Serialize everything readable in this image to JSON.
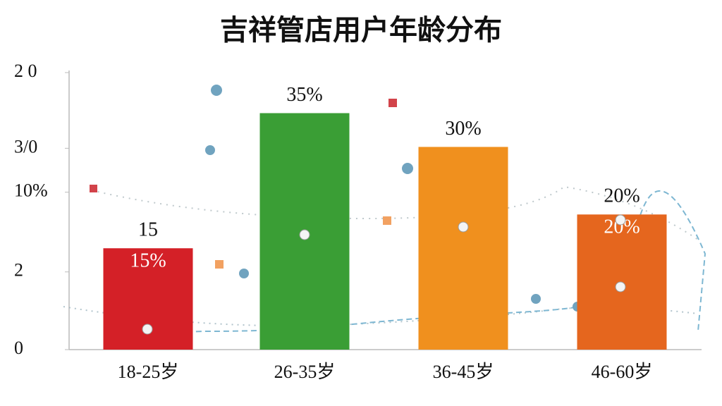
{
  "chart_data": {
    "type": "bar",
    "title": "吉祥管店用户年龄分布",
    "categories": [
      "18-25岁",
      "26-35岁",
      "36-45岁",
      "46-60岁"
    ],
    "values": [
      15,
      35,
      30,
      20
    ],
    "value_labels": [
      "15",
      "35%",
      "30%",
      "20%"
    ],
    "inner_labels": [
      "15%",
      null,
      null,
      "20%"
    ],
    "colors": [
      "#d42027",
      "#3a9e35",
      "#f0901e",
      "#e5661e"
    ],
    "ylim": [
      0,
      41
    ],
    "yticks": [
      0,
      {
        "value": 11.5,
        "label": "2"
      },
      {
        "value": 23.3,
        "label": "10%"
      },
      {
        "value": 29.8,
        "label": "3/0"
      },
      {
        "value": 41,
        "label": "2 0"
      }
    ]
  }
}
